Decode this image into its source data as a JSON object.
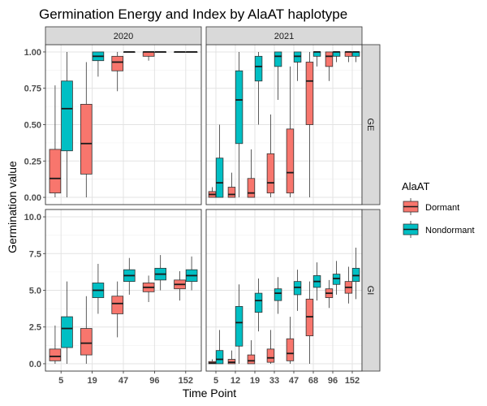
{
  "chart_data": {
    "type": "boxplot",
    "title": "Germination Energy and Index by AlaAT haplotype",
    "xlabel": "Time Point",
    "ylabel": "Germination value",
    "legend": {
      "title": "AlaAT",
      "placement": "right",
      "entries": [
        {
          "name": "Dormant",
          "color": "#F8766D"
        },
        {
          "name": "Nondormant",
          "color": "#00BFC4"
        }
      ]
    },
    "facet_cols": [
      "2020",
      "2021"
    ],
    "facet_rows": [
      {
        "label": "GE",
        "ylim": [
          -0.05,
          1.05
        ],
        "yticks": [
          0.0,
          0.25,
          0.5,
          0.75,
          1.0
        ],
        "ytick_labels": [
          "0.00",
          "0.25",
          "0.50",
          "0.75",
          "1.00"
        ]
      },
      {
        "label": "GI",
        "ylim": [
          -0.5,
          10.5
        ],
        "yticks": [
          0.0,
          2.5,
          5.0,
          7.5,
          10.0
        ],
        "ytick_labels": [
          "0.0",
          "2.5",
          "5.0",
          "7.5",
          "10.0"
        ]
      }
    ],
    "x_categories": {
      "2020": [
        "5",
        "19",
        "47",
        "96",
        "152"
      ],
      "2021": [
        "5",
        "12",
        "19",
        "33",
        "47",
        "68",
        "96",
        "152"
      ]
    },
    "groups": [
      "Dormant",
      "Nondormant"
    ],
    "boxes": {
      "GE": {
        "2020": {
          "Dormant": [
            {
              "x": "5",
              "min": 0.0,
              "q1": 0.03,
              "median": 0.13,
              "q3": 0.33,
              "max": 0.77
            },
            {
              "x": "19",
              "min": 0.0,
              "q1": 0.16,
              "median": 0.37,
              "q3": 0.64,
              "max": 0.93
            },
            {
              "x": "47",
              "min": 0.73,
              "q1": 0.87,
              "median": 0.93,
              "q3": 0.97,
              "max": 1.0
            },
            {
              "x": "96",
              "min": 0.94,
              "q1": 0.97,
              "median": 1.0,
              "q3": 1.0,
              "max": 1.0
            },
            {
              "x": "152",
              "min": 1.0,
              "q1": 1.0,
              "median": 1.0,
              "q3": 1.0,
              "max": 1.0
            }
          ],
          "Nondormant": [
            {
              "x": "5",
              "min": 0.0,
              "q1": 0.32,
              "median": 0.61,
              "q3": 0.8,
              "max": 1.0
            },
            {
              "x": "19",
              "min": 0.83,
              "q1": 0.94,
              "median": 0.97,
              "q3": 1.0,
              "max": 1.0
            },
            {
              "x": "47",
              "min": 1.0,
              "q1": 1.0,
              "median": 1.0,
              "q3": 1.0,
              "max": 1.0
            },
            {
              "x": "96",
              "min": 1.0,
              "q1": 1.0,
              "median": 1.0,
              "q3": 1.0,
              "max": 1.0
            },
            {
              "x": "152",
              "min": 1.0,
              "q1": 1.0,
              "median": 1.0,
              "q3": 1.0,
              "max": 1.0
            }
          ]
        },
        "2021": {
          "Dormant": [
            {
              "x": "5",
              "min": 0.0,
              "q1": 0.0,
              "median": 0.02,
              "q3": 0.04,
              "max": 0.07
            },
            {
              "x": "12",
              "min": 0.0,
              "q1": 0.0,
              "median": 0.02,
              "q3": 0.07,
              "max": 0.17
            },
            {
              "x": "19",
              "min": 0.0,
              "q1": 0.0,
              "median": 0.03,
              "q3": 0.13,
              "max": 0.33
            },
            {
              "x": "33",
              "min": 0.0,
              "q1": 0.03,
              "median": 0.1,
              "q3": 0.3,
              "max": 0.57
            },
            {
              "x": "47",
              "min": 0.0,
              "q1": 0.03,
              "median": 0.17,
              "q3": 0.47,
              "max": 0.9
            },
            {
              "x": "68",
              "min": 0.0,
              "q1": 0.5,
              "median": 0.8,
              "q3": 0.93,
              "max": 1.0
            },
            {
              "x": "96",
              "min": 0.8,
              "q1": 0.9,
              "median": 0.97,
              "q3": 1.0,
              "max": 1.0
            },
            {
              "x": "152",
              "min": 0.93,
              "q1": 0.97,
              "median": 1.0,
              "q3": 1.0,
              "max": 1.0
            }
          ],
          "Nondormant": [
            {
              "x": "5",
              "min": 0.0,
              "q1": 0.0,
              "median": 0.1,
              "q3": 0.27,
              "max": 0.5
            },
            {
              "x": "12",
              "min": 0.0,
              "q1": 0.37,
              "median": 0.67,
              "q3": 0.87,
              "max": 1.0
            },
            {
              "x": "19",
              "min": 0.5,
              "q1": 0.8,
              "median": 0.9,
              "q3": 0.97,
              "max": 1.0
            },
            {
              "x": "33",
              "min": 0.67,
              "q1": 0.9,
              "median": 0.97,
              "q3": 1.0,
              "max": 1.0
            },
            {
              "x": "47",
              "min": 0.8,
              "q1": 0.93,
              "median": 0.97,
              "q3": 1.0,
              "max": 1.0
            },
            {
              "x": "68",
              "min": 0.9,
              "q1": 0.97,
              "median": 1.0,
              "q3": 1.0,
              "max": 1.0
            },
            {
              "x": "96",
              "min": 0.93,
              "q1": 0.97,
              "median": 1.0,
              "q3": 1.0,
              "max": 1.0
            },
            {
              "x": "152",
              "min": 0.93,
              "q1": 0.97,
              "median": 1.0,
              "q3": 1.0,
              "max": 1.0
            }
          ]
        }
      },
      "GI": {
        "2020": {
          "Dormant": [
            {
              "x": "5",
              "min": 0.0,
              "q1": 0.2,
              "median": 0.5,
              "q3": 1.0,
              "max": 2.6
            },
            {
              "x": "19",
              "min": 0.0,
              "q1": 0.6,
              "median": 1.4,
              "q3": 2.4,
              "max": 4.6
            },
            {
              "x": "47",
              "min": 1.8,
              "q1": 3.4,
              "median": 4.1,
              "q3": 4.6,
              "max": 5.6
            },
            {
              "x": "96",
              "min": 4.2,
              "q1": 4.9,
              "median": 5.2,
              "q3": 5.5,
              "max": 6.0
            },
            {
              "x": "152",
              "min": 4.3,
              "q1": 5.1,
              "median": 5.4,
              "q3": 5.7,
              "max": 6.3
            }
          ],
          "Nondormant": [
            {
              "x": "5",
              "min": 0.0,
              "q1": 1.1,
              "median": 2.4,
              "q3": 3.2,
              "max": 5.6
            },
            {
              "x": "19",
              "min": 3.4,
              "q1": 4.5,
              "median": 5.0,
              "q3": 5.5,
              "max": 6.8
            },
            {
              "x": "47",
              "min": 4.7,
              "q1": 5.6,
              "median": 6.0,
              "q3": 6.4,
              "max": 7.2
            },
            {
              "x": "96",
              "min": 5.0,
              "q1": 5.7,
              "median": 6.1,
              "q3": 6.5,
              "max": 7.4
            },
            {
              "x": "152",
              "min": 5.0,
              "q1": 5.6,
              "median": 6.0,
              "q3": 6.4,
              "max": 7.3
            }
          ]
        },
        "2021": {
          "Dormant": [
            {
              "x": "5",
              "min": 0.0,
              "q1": 0.0,
              "median": 0.05,
              "q3": 0.15,
              "max": 0.3
            },
            {
              "x": "12",
              "min": 0.0,
              "q1": 0.0,
              "median": 0.1,
              "q3": 0.3,
              "max": 0.9
            },
            {
              "x": "19",
              "min": 0.0,
              "q1": 0.0,
              "median": 0.2,
              "q3": 0.6,
              "max": 1.6
            },
            {
              "x": "33",
              "min": 0.0,
              "q1": 0.1,
              "median": 0.4,
              "q3": 1.0,
              "max": 2.3
            },
            {
              "x": "47",
              "min": 0.0,
              "q1": 0.2,
              "median": 0.7,
              "q3": 1.7,
              "max": 3.2
            },
            {
              "x": "68",
              "min": 0.0,
              "q1": 1.9,
              "median": 3.2,
              "q3": 4.4,
              "max": 5.6
            },
            {
              "x": "96",
              "min": 3.8,
              "q1": 4.5,
              "median": 4.8,
              "q3": 5.1,
              "max": 5.7
            },
            {
              "x": "152",
              "min": 4.1,
              "q1": 4.8,
              "median": 5.2,
              "q3": 5.6,
              "max": 6.6
            }
          ],
          "Nondormant": [
            {
              "x": "5",
              "min": 0.0,
              "q1": 0.0,
              "median": 0.3,
              "q3": 0.9,
              "max": 2.3
            },
            {
              "x": "12",
              "min": 0.0,
              "q1": 1.2,
              "median": 2.8,
              "q3": 3.9,
              "max": 5.4
            },
            {
              "x": "19",
              "min": 2.2,
              "q1": 3.5,
              "median": 4.3,
              "q3": 4.8,
              "max": 5.8
            },
            {
              "x": "33",
              "min": 3.4,
              "q1": 4.3,
              "median": 4.8,
              "q3": 5.1,
              "max": 5.9
            },
            {
              "x": "47",
              "min": 3.6,
              "q1": 4.7,
              "median": 5.2,
              "q3": 5.6,
              "max": 6.4
            },
            {
              "x": "68",
              "min": 4.3,
              "q1": 5.2,
              "median": 5.6,
              "q3": 6.0,
              "max": 6.9
            },
            {
              "x": "96",
              "min": 4.7,
              "q1": 5.4,
              "median": 5.8,
              "q3": 6.1,
              "max": 7.0
            },
            {
              "x": "152",
              "min": 4.4,
              "q1": 5.6,
              "median": 6.0,
              "q3": 6.5,
              "max": 7.9
            }
          ]
        }
      }
    }
  }
}
